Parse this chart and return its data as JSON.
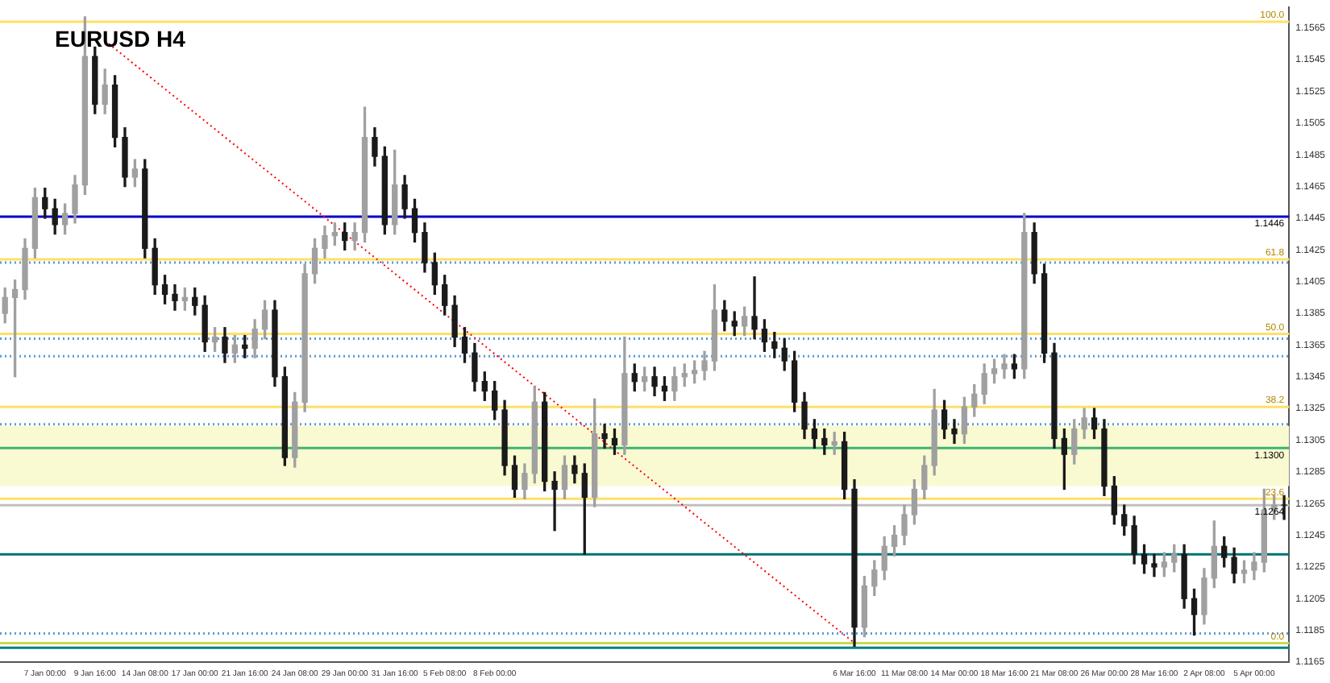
{
  "chart_data": {
    "type": "candlestick",
    "title": "EURUSD H4",
    "colors": [
      "#a0a0a0",
      "#a0a0a0",
      "#a0a0a0",
      "#a0a0a0",
      "#1a1a1a",
      "#1a1a1a",
      "#a0a0a0",
      "#a0a0a0",
      "#a0a0a0",
      "#1a1a1a",
      "#a0a0a0",
      "#1a1a1a",
      "#1a1a1a",
      "#a0a0a0",
      "#1a1a1a",
      "#1a1a1a",
      "#1a1a1a",
      "#1a1a1a",
      "#a0a0a0",
      "#1a1a1a",
      "#1a1a1a",
      "#a0a0a0",
      "#1a1a1a",
      "#a0a0a0",
      "#1a1a1a",
      "#a0a0a0",
      "#a0a0a0",
      "#1a1a1a",
      "#1a1a1a",
      "#a0a0a0",
      "#a0a0a0",
      "#a0a0a0",
      "#a0a0a0",
      "#a0a0a0",
      "#1a1a1a",
      "#a0a0a0",
      "#a0a0a0",
      "#1a1a1a",
      "#1a1a1a",
      "#a0a0a0",
      "#1a1a1a",
      "#1a1a1a",
      "#1a1a1a",
      "#1a1a1a",
      "#1a1a1a",
      "#1a1a1a",
      "#1a1a1a",
      "#1a1a1a",
      "#1a1a1a",
      "#1a1a1a",
      "#1a1a1a",
      "#1a1a1a",
      "#a0a0a0",
      "#a0a0a0",
      "#1a1a1a",
      "#1a1a1a",
      "#a0a0a0",
      "#1a1a1a",
      "#1a1a1a",
      "#a0a0a0",
      "#1a1a1a",
      "#1a1a1a",
      "#a0a0a0",
      "#1a1a1a",
      "#a0a0a0",
      "#1a1a1a",
      "#1a1a1a",
      "#a0a0a0",
      "#a0a0a0",
      "#a0a0a0",
      "#a0a0a0",
      "#a0a0a0",
      "#1a1a1a",
      "#1a1a1a",
      "#a0a0a0",
      "#1a1a1a",
      "#1a1a1a",
      "#1a1a1a",
      "#1a1a1a",
      "#1a1a1a",
      "#1a1a1a",
      "#1a1a1a",
      "#1a1a1a",
      "#a0a0a0",
      "#1a1a1a",
      "#1a1a1a",
      "#a0a0a0",
      "#a0a0a0",
      "#a0a0a0",
      "#a0a0a0",
      "#a0a0a0",
      "#a0a0a0",
      "#a0a0a0",
      "#a0a0a0",
      "#1a1a1a",
      "#1a1a1a",
      "#a0a0a0",
      "#a0a0a0",
      "#a0a0a0",
      "#a0a0a0",
      "#a0a0a0",
      "#1a1a1a",
      "#a0a0a0",
      "#1a1a1a",
      "#1a1a1a",
      "#1a1a1a",
      "#1a1a1a",
      "#a0a0a0",
      "#a0a0a0",
      "#1a1a1a",
      "#1a1a1a",
      "#1a1a1a",
      "#1a1a1a",
      "#1a1a1a",
      "#1a1a1a",
      "#1a1a1a",
      "#a0a0a0",
      "#a0a0a0",
      "#1a1a1a",
      "#1a1a1a",
      "#a0a0a0",
      "#a0a0a0",
      "#1a1a1a",
      "#1a1a1a",
      "#a0a0a0",
      "#a0a0a0",
      "#a0a0a0",
      "#a0a0a0",
      "#1a1a1a"
    ],
    "categories": [
      null,
      null,
      null,
      null,
      "7 Jan 00:00",
      null,
      null,
      null,
      null,
      "9 Jan 16:00",
      null,
      null,
      null,
      null,
      "14 Jan 08:00",
      null,
      null,
      null,
      null,
      "17 Jan 00:00",
      null,
      null,
      null,
      null,
      "21 Jan 16:00",
      null,
      null,
      null,
      null,
      "24 Jan 08:00",
      null,
      null,
      null,
      null,
      "29 Jan 00:00",
      null,
      null,
      null,
      null,
      "31 Jan 16:00",
      null,
      null,
      null,
      null,
      "5 Feb 08:00",
      null,
      null,
      null,
      null,
      "8 Feb 00:00",
      null,
      null,
      null,
      null,
      null,
      null,
      null,
      null,
      null,
      null,
      null,
      null,
      null,
      null,
      null,
      null,
      null,
      null,
      null,
      null,
      null,
      null,
      null,
      null,
      null,
      null,
      null,
      null,
      null,
      null,
      null,
      null,
      null,
      null,
      null,
      "6 Mar 16:00",
      null,
      null,
      null,
      null,
      "11 Mar 08:00",
      null,
      null,
      null,
      null,
      "14 Mar 00:00",
      null,
      null,
      null,
      null,
      "18 Mar 16:00",
      null,
      null,
      null,
      null,
      "21 Mar 08:00",
      null,
      null,
      null,
      null,
      "26 Mar 00:00",
      null,
      null,
      null,
      null,
      "28 Mar 16:00",
      null,
      null,
      null,
      null,
      "2 Apr 08:00",
      null,
      null,
      null,
      null,
      "5 Apr 00:00",
      null,
      null,
      null
    ],
    "ohlc": [
      [
        1.1385,
        1.1401,
        1.1379,
        1.1395
      ],
      [
        1.1395,
        1.1406,
        1.1345,
        1.14
      ],
      [
        1.14,
        1.1432,
        1.1394,
        1.1426
      ],
      [
        1.1426,
        1.1464,
        1.142,
        1.1458
      ],
      [
        1.1458,
        1.1464,
        1.1445,
        1.1451
      ],
      [
        1.1451,
        1.1457,
        1.1435,
        1.1441
      ],
      [
        1.1441,
        1.1454,
        1.1435,
        1.1448
      ],
      [
        1.1448,
        1.1472,
        1.1442,
        1.1466
      ],
      [
        1.1466,
        1.1572,
        1.146,
        1.1547
      ],
      [
        1.1547,
        1.1553,
        1.1511,
        1.1517
      ],
      [
        1.1517,
        1.1539,
        1.1511,
        1.1529
      ],
      [
        1.1529,
        1.1535,
        1.149,
        1.1496
      ],
      [
        1.1496,
        1.1502,
        1.1465,
        1.1471
      ],
      [
        1.1471,
        1.1482,
        1.1465,
        1.1476
      ],
      [
        1.1476,
        1.1482,
        1.142,
        1.1426
      ],
      [
        1.1426,
        1.1432,
        1.1397,
        1.1403
      ],
      [
        1.1403,
        1.1409,
        1.1391,
        1.1397
      ],
      [
        1.1397,
        1.1403,
        1.1387,
        1.1393
      ],
      [
        1.1393,
        1.1401,
        1.1387,
        1.1395
      ],
      [
        1.1395,
        1.1401,
        1.1384,
        1.139
      ],
      [
        1.139,
        1.1396,
        1.1361,
        1.1367
      ],
      [
        1.1367,
        1.1376,
        1.1361,
        1.137
      ],
      [
        1.137,
        1.1376,
        1.1354,
        1.136
      ],
      [
        1.136,
        1.1371,
        1.1354,
        1.1365
      ],
      [
        1.1365,
        1.1371,
        1.1357,
        1.1363
      ],
      [
        1.1363,
        1.1381,
        1.1357,
        1.1375
      ],
      [
        1.1375,
        1.1393,
        1.1369,
        1.1387
      ],
      [
        1.1387,
        1.1393,
        1.1339,
        1.1345
      ],
      [
        1.1345,
        1.1351,
        1.1289,
        1.1294
      ],
      [
        1.1294,
        1.1335,
        1.1288,
        1.1329
      ],
      [
        1.1329,
        1.1416,
        1.1323,
        1.141
      ],
      [
        1.141,
        1.1432,
        1.1404,
        1.1426
      ],
      [
        1.1426,
        1.144,
        1.142,
        1.1434
      ],
      [
        1.1434,
        1.1442,
        1.1428,
        1.1436
      ],
      [
        1.1436,
        1.1442,
        1.1425,
        1.1431
      ],
      [
        1.1431,
        1.1442,
        1.1425,
        1.1436
      ],
      [
        1.1436,
        1.1515,
        1.143,
        1.1496
      ],
      [
        1.1496,
        1.1502,
        1.1478,
        1.1484
      ],
      [
        1.1484,
        1.149,
        1.1435,
        1.1441
      ],
      [
        1.1441,
        1.1488,
        1.1435,
        1.1466
      ],
      [
        1.1466,
        1.1472,
        1.1445,
        1.1451
      ],
      [
        1.1451,
        1.1457,
        1.143,
        1.1436
      ],
      [
        1.1436,
        1.1442,
        1.1411,
        1.1417
      ],
      [
        1.1417,
        1.1423,
        1.1397,
        1.1403
      ],
      [
        1.1403,
        1.1409,
        1.1384,
        1.139
      ],
      [
        1.139,
        1.1396,
        1.1364,
        1.137
      ],
      [
        1.137,
        1.1376,
        1.1354,
        1.136
      ],
      [
        1.136,
        1.1366,
        1.1336,
        1.1342
      ],
      [
        1.1342,
        1.1348,
        1.133,
        1.1336
      ],
      [
        1.1336,
        1.1342,
        1.1318,
        1.1324
      ],
      [
        1.1324,
        1.133,
        1.1283,
        1.1289
      ],
      [
        1.1289,
        1.1295,
        1.1269,
        1.1274
      ],
      [
        1.1274,
        1.129,
        1.1268,
        1.1284
      ],
      [
        1.1284,
        1.1339,
        1.1278,
        1.1329
      ],
      [
        1.1329,
        1.1335,
        1.1273,
        1.1279
      ],
      [
        1.1279,
        1.1285,
        1.1248,
        1.1274
      ],
      [
        1.1274,
        1.1295,
        1.1268,
        1.1289
      ],
      [
        1.1289,
        1.1295,
        1.1278,
        1.1284
      ],
      [
        1.1284,
        1.129,
        1.1233,
        1.1269
      ],
      [
        1.1269,
        1.1331,
        1.1263,
        1.1309
      ],
      [
        1.1309,
        1.1315,
        1.13,
        1.1306
      ],
      [
        1.1306,
        1.1312,
        1.1296,
        1.1302
      ],
      [
        1.1302,
        1.137,
        1.1296,
        1.1347
      ],
      [
        1.1347,
        1.1353,
        1.1336,
        1.1342
      ],
      [
        1.1342,
        1.1351,
        1.1336,
        1.1345
      ],
      [
        1.1345,
        1.1351,
        1.1333,
        1.1339
      ],
      [
        1.1339,
        1.1345,
        1.133,
        1.1336
      ],
      [
        1.1336,
        1.1351,
        1.133,
        1.1345
      ],
      [
        1.1345,
        1.1353,
        1.1339,
        1.1347
      ],
      [
        1.1347,
        1.1355,
        1.1341,
        1.1349
      ],
      [
        1.1349,
        1.1361,
        1.1343,
        1.1355
      ],
      [
        1.1355,
        1.1403,
        1.1349,
        1.1387
      ],
      [
        1.1387,
        1.1393,
        1.1374,
        1.138
      ],
      [
        1.138,
        1.1386,
        1.1371,
        1.1377
      ],
      [
        1.1377,
        1.1389,
        1.1371,
        1.1383
      ],
      [
        1.1383,
        1.1408,
        1.1369,
        1.1375
      ],
      [
        1.1375,
        1.1381,
        1.1361,
        1.1367
      ],
      [
        1.1367,
        1.1373,
        1.1357,
        1.1363
      ],
      [
        1.1363,
        1.1369,
        1.1349,
        1.1355
      ],
      [
        1.1355,
        1.1361,
        1.1323,
        1.1329
      ],
      [
        1.1329,
        1.1335,
        1.1306,
        1.1312
      ],
      [
        1.1312,
        1.1318,
        1.13,
        1.1306
      ],
      [
        1.1306,
        1.1312,
        1.1296,
        1.1302
      ],
      [
        1.1302,
        1.131,
        1.1296,
        1.1304
      ],
      [
        1.1304,
        1.131,
        1.1268,
        1.1274
      ],
      [
        1.1274,
        1.128,
        1.1175,
        1.1187
      ],
      [
        1.1187,
        1.1219,
        1.1181,
        1.1213
      ],
      [
        1.1213,
        1.1229,
        1.1207,
        1.1223
      ],
      [
        1.1223,
        1.1244,
        1.1217,
        1.1238
      ],
      [
        1.1238,
        1.1251,
        1.1232,
        1.1245
      ],
      [
        1.1245,
        1.1264,
        1.1239,
        1.1258
      ],
      [
        1.1258,
        1.128,
        1.1252,
        1.1274
      ],
      [
        1.1274,
        1.1295,
        1.1268,
        1.1289
      ],
      [
        1.1289,
        1.1337,
        1.1283,
        1.1324
      ],
      [
        1.1324,
        1.133,
        1.1306,
        1.1312
      ],
      [
        1.1312,
        1.1318,
        1.1303,
        1.1309
      ],
      [
        1.1309,
        1.1332,
        1.1303,
        1.1326
      ],
      [
        1.1326,
        1.134,
        1.132,
        1.1334
      ],
      [
        1.1334,
        1.1353,
        1.1328,
        1.1347
      ],
      [
        1.1347,
        1.1356,
        1.1341,
        1.135
      ],
      [
        1.135,
        1.1359,
        1.1344,
        1.1353
      ],
      [
        1.1353,
        1.1359,
        1.1344,
        1.135
      ],
      [
        1.135,
        1.1448,
        1.1344,
        1.1436
      ],
      [
        1.1436,
        1.1442,
        1.1404,
        1.141
      ],
      [
        1.141,
        1.1416,
        1.1354,
        1.136
      ],
      [
        1.136,
        1.1366,
        1.13,
        1.1306
      ],
      [
        1.1306,
        1.1312,
        1.1274,
        1.1296
      ],
      [
        1.1296,
        1.1318,
        1.129,
        1.1312
      ],
      [
        1.1312,
        1.1325,
        1.1306,
        1.1319
      ],
      [
        1.1319,
        1.1325,
        1.1306,
        1.1312
      ],
      [
        1.1312,
        1.1318,
        1.127,
        1.1276
      ],
      [
        1.1276,
        1.1282,
        1.1252,
        1.1258
      ],
      [
        1.1258,
        1.1264,
        1.1245,
        1.1251
      ],
      [
        1.1251,
        1.1257,
        1.1227,
        1.1233
      ],
      [
        1.1233,
        1.1239,
        1.1221,
        1.1227
      ],
      [
        1.1227,
        1.1233,
        1.1219,
        1.1225
      ],
      [
        1.1225,
        1.1234,
        1.1219,
        1.1228
      ],
      [
        1.1228,
        1.1239,
        1.1222,
        1.1233
      ],
      [
        1.1233,
        1.1239,
        1.1199,
        1.1205
      ],
      [
        1.1205,
        1.1211,
        1.1182,
        1.1195
      ],
      [
        1.1195,
        1.1224,
        1.1189,
        1.1218
      ],
      [
        1.1218,
        1.1254,
        1.1212,
        1.1238
      ],
      [
        1.1238,
        1.1244,
        1.1225,
        1.1231
      ],
      [
        1.1231,
        1.1237,
        1.1215,
        1.1221
      ],
      [
        1.1221,
        1.1229,
        1.1215,
        1.1223
      ],
      [
        1.1223,
        1.1234,
        1.1217,
        1.1228
      ],
      [
        1.1228,
        1.1274,
        1.1222,
        1.1261
      ],
      [
        1.1261,
        1.127,
        1.1255,
        1.1264
      ],
      [
        1.1264,
        1.127,
        1.1255,
        1.1264
      ]
    ],
    "series": [
      {
        "type": "line",
        "color": "#ff0000",
        "line_style": "dotted",
        "values": [
          null,
          null,
          null,
          null,
          null,
          null,
          null,
          null,
          null,
          null,
          1.1557,
          null,
          null,
          null,
          null,
          null,
          null,
          null,
          null,
          null,
          null,
          null,
          null,
          null,
          null,
          null,
          null,
          null,
          null,
          null,
          null,
          null,
          null,
          null,
          null,
          null,
          null,
          null,
          null,
          null,
          null,
          null,
          null,
          null,
          null,
          null,
          null,
          null,
          null,
          null,
          null,
          null,
          null,
          null,
          null,
          null,
          null,
          null,
          null,
          null,
          null,
          null,
          null,
          null,
          null,
          null,
          null,
          null,
          null,
          null,
          null,
          null,
          null,
          null,
          null,
          null,
          null,
          null,
          null,
          null,
          null,
          null,
          null,
          null,
          null,
          1.1177,
          null,
          null,
          null,
          null,
          null,
          null,
          null,
          null,
          null,
          null,
          null,
          null,
          null,
          null,
          null,
          null,
          null,
          null,
          null,
          null,
          null,
          null,
          null,
          null,
          null,
          null,
          null,
          null,
          null,
          null,
          null,
          null,
          null,
          null,
          null,
          null,
          null,
          null,
          null,
          null,
          null,
          null,
          null
        ]
      }
    ],
    "ylim": [
      1.1165,
      1.1578
    ],
    "yticks": [
      1.1165,
      1.1185,
      1.1205,
      1.1225,
      1.1245,
      1.1265,
      1.1285,
      1.1305,
      1.1325,
      1.1345,
      1.1365,
      1.1385,
      1.1405,
      1.1425,
      1.1445,
      1.1465,
      1.1485,
      1.1505,
      1.1525,
      1.1545,
      1.1565
    ],
    "grid": false,
    "annotations": [
      {
        "text": "100.0",
        "y": 1.1569
      },
      {
        "text": "61.8",
        "y": 1.1419
      },
      {
        "text": "50.0",
        "y": 1.1372
      },
      {
        "text": "38.2",
        "y": 1.1326
      },
      {
        "text": "23.6",
        "y": 1.1268
      },
      {
        "text": "0.0",
        "y": 1.1177
      }
    ],
    "bands": [
      {
        "axis": "y",
        "from": 1.1276,
        "to": 1.1314,
        "color": "#fafad2"
      }
    ],
    "ref_lines": [
      {
        "axis": "y",
        "value": 1.1569,
        "color": "#ffe066"
      },
      {
        "axis": "y",
        "value": 1.1419,
        "color": "#ffe066"
      },
      {
        "axis": "y",
        "value": 1.1372,
        "color": "#ffe066"
      },
      {
        "axis": "y",
        "value": 1.1326,
        "color": "#ffe066"
      },
      {
        "axis": "y",
        "value": 1.1268,
        "color": "#ffe066"
      },
      {
        "axis": "y",
        "value": 1.1177,
        "color": "#c8d850"
      },
      {
        "axis": "y",
        "value": 1.1417,
        "color": "#5b9bd5",
        "line_style": "dotted"
      },
      {
        "axis": "y",
        "value": 1.1369,
        "color": "#5b9bd5",
        "line_style": "dotted"
      },
      {
        "axis": "y",
        "value": 1.1358,
        "color": "#5b9bd5",
        "line_style": "dotted"
      },
      {
        "axis": "y",
        "value": 1.1315,
        "color": "#5b9bd5",
        "line_style": "dotted"
      },
      {
        "axis": "y",
        "value": 1.1183,
        "color": "#5b9bd5",
        "line_style": "dotted"
      },
      {
        "axis": "y",
        "value": 1.1264,
        "label": "1.1264",
        "color": "#c0c0c0"
      },
      {
        "axis": "y",
        "value": 1.1446,
        "label": "1.1446",
        "color": "#0000cc"
      },
      {
        "axis": "y",
        "value": 1.13,
        "label": "1.1300",
        "color": "#3cb371"
      },
      {
        "axis": "y",
        "value": 1.1233,
        "color": "#007070"
      },
      {
        "axis": "y",
        "value": 1.1174,
        "color": "#008080"
      }
    ]
  }
}
